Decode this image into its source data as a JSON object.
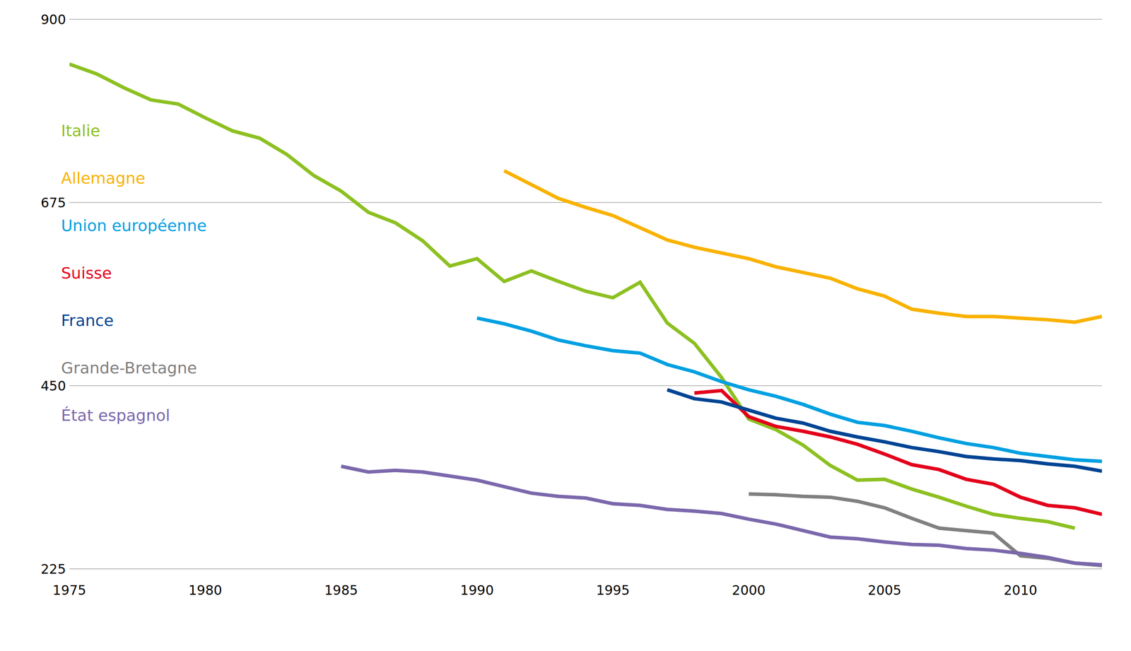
{
  "chart_data": {
    "type": "line",
    "x": [
      1975,
      1976,
      1977,
      1978,
      1979,
      1980,
      1981,
      1982,
      1983,
      1984,
      1985,
      1986,
      1987,
      1988,
      1989,
      1990,
      1991,
      1992,
      1993,
      1994,
      1995,
      1996,
      1997,
      1998,
      1999,
      2000,
      2001,
      2002,
      2003,
      2004,
      2005,
      2006,
      2007,
      2008,
      2009,
      2010,
      2011,
      2012,
      2013
    ],
    "xlim": [
      1975,
      2013
    ],
    "xticks": [
      1975,
      1980,
      1985,
      1990,
      1995,
      2000,
      2005,
      2010
    ],
    "ylim": [
      225,
      900
    ],
    "yticks": [
      225,
      450,
      675,
      900
    ],
    "grid": true,
    "legend": "left",
    "series": [
      {
        "name": "Italie",
        "color": "#8dc021",
        "values": [
          845,
          833,
          816,
          801,
          796,
          779,
          763,
          754,
          734,
          708,
          689,
          663,
          650,
          628,
          597,
          606,
          578,
          591,
          578,
          566,
          558,
          577,
          527,
          502,
          460,
          409,
          396,
          377,
          352,
          334,
          335,
          323,
          313,
          302,
          292,
          287,
          283,
          275,
          null
        ]
      },
      {
        "name": "Allemagne",
        "color": "#f9b200",
        "values": [
          null,
          null,
          null,
          null,
          null,
          null,
          null,
          null,
          null,
          null,
          null,
          null,
          null,
          null,
          null,
          null,
          714,
          697,
          680,
          669,
          659,
          644,
          629,
          620,
          613,
          606,
          596,
          589,
          582,
          569,
          560,
          544,
          539,
          535,
          535,
          533,
          531,
          528,
          535
        ]
      },
      {
        "name": "Union européenne",
        "color": "#00a0e1",
        "values": [
          null,
          null,
          null,
          null,
          null,
          null,
          null,
          null,
          null,
          null,
          null,
          null,
          null,
          null,
          null,
          533,
          526,
          517,
          506,
          499,
          493,
          490,
          476,
          467,
          455,
          445,
          437,
          427,
          415,
          405,
          401,
          394,
          386,
          379,
          374,
          367,
          363,
          359,
          357
        ]
      },
      {
        "name": "Suisse",
        "color": "#e3001b",
        "values": [
          null,
          null,
          null,
          null,
          null,
          null,
          null,
          null,
          null,
          null,
          null,
          null,
          null,
          null,
          null,
          null,
          null,
          null,
          null,
          null,
          null,
          null,
          null,
          441,
          444,
          412,
          400,
          394,
          387,
          378,
          366,
          353,
          347,
          335,
          329,
          313,
          303,
          300,
          292
        ]
      },
      {
        "name": "France",
        "color": "#004494",
        "values": [
          null,
          null,
          null,
          null,
          null,
          null,
          null,
          null,
          null,
          null,
          null,
          null,
          null,
          null,
          null,
          null,
          null,
          null,
          null,
          null,
          null,
          null,
          445,
          434,
          430,
          420,
          410,
          404,
          394,
          387,
          381,
          374,
          369,
          363,
          360,
          358,
          354,
          351,
          345
        ]
      },
      {
        "name": "Grande-Bretagne",
        "color": "#808080",
        "values": [
          null,
          null,
          null,
          null,
          null,
          null,
          null,
          null,
          null,
          null,
          null,
          null,
          null,
          null,
          null,
          null,
          null,
          null,
          null,
          null,
          null,
          null,
          null,
          null,
          null,
          317,
          316,
          314,
          313,
          308,
          300,
          287,
          275,
          272,
          269,
          241,
          238,
          232,
          229
        ]
      },
      {
        "name": "État espagnol",
        "color": "#7b68ac",
        "values": [
          null,
          null,
          null,
          null,
          null,
          null,
          null,
          null,
          null,
          null,
          351,
          344,
          346,
          344,
          339,
          334,
          326,
          318,
          314,
          312,
          305,
          303,
          298,
          296,
          293,
          286,
          280,
          272,
          264,
          262,
          258,
          255,
          254,
          250,
          248,
          244,
          239,
          232,
          230
        ]
      }
    ]
  }
}
